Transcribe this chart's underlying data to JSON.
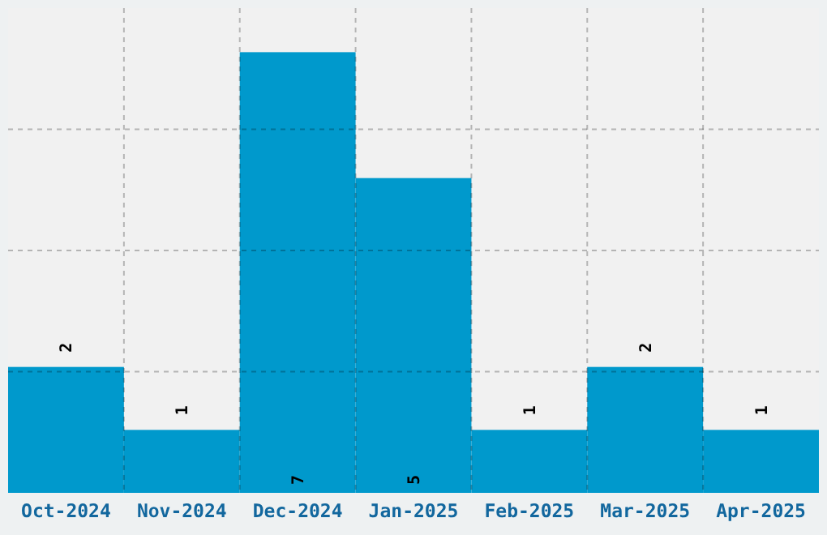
{
  "chart_data": {
    "type": "bar",
    "categories": [
      "Oct-2024",
      "Nov-2024",
      "Dec-2024",
      "Jan-2025",
      "Feb-2025",
      "Mar-2025",
      "Apr-2025"
    ],
    "values": [
      2,
      1,
      7,
      5,
      1,
      2,
      1
    ],
    "color": "#0099cc",
    "data_labels": true,
    "grid": true,
    "ylim": [
      0,
      7.7
    ],
    "yticks": [
      {
        "value": 1.925,
        "label": null
      },
      {
        "value": 3.85,
        "label": null
      },
      {
        "value": 5.775,
        "label": null
      }
    ],
    "tick_labels": "x"
  }
}
